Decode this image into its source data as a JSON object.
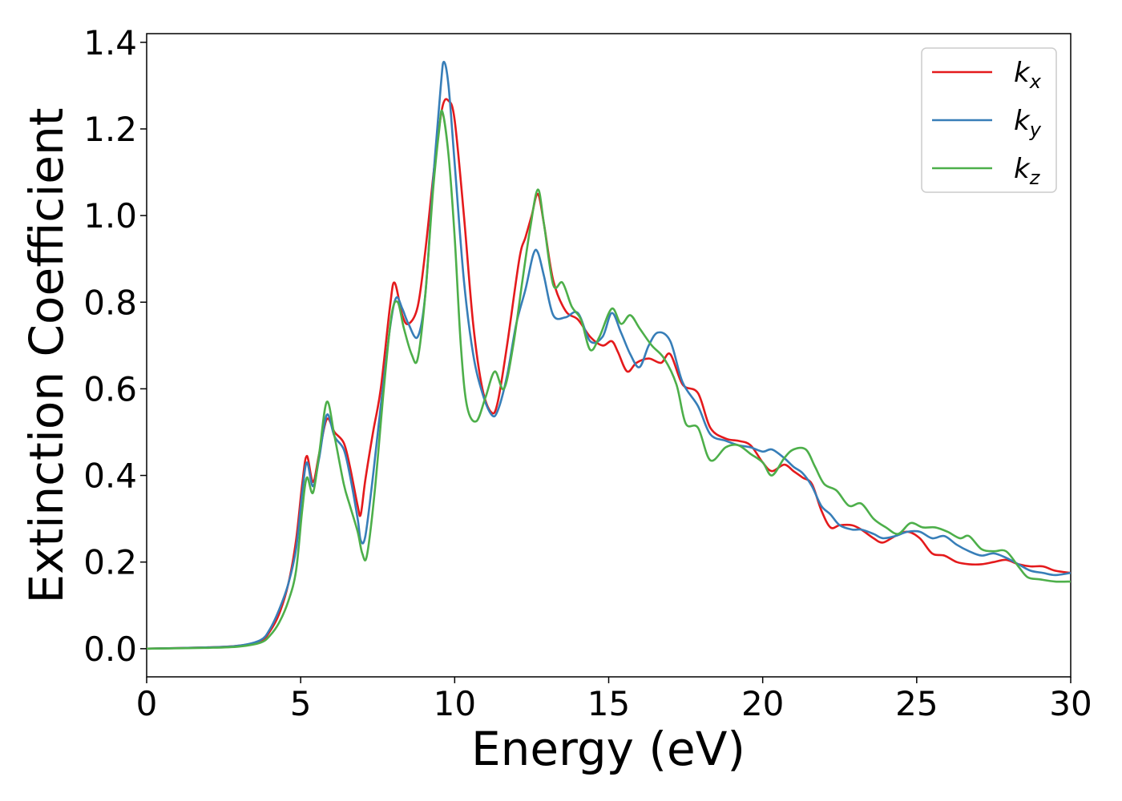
{
  "chart_data": {
    "type": "line",
    "xlabel": "Energy (eV)",
    "ylabel": "Extinction Coefficient",
    "xlim": [
      0,
      30
    ],
    "ylim": [
      -0.065,
      1.42
    ],
    "x_ticks": [
      "0",
      "5",
      "10",
      "15",
      "20",
      "25",
      "30"
    ],
    "y_ticks": [
      "0.0",
      "0.2",
      "0.4",
      "0.6",
      "0.8",
      "1.0",
      "1.2",
      "1.4"
    ],
    "grid": false,
    "legend_position": "top-right",
    "series": [
      {
        "name": "k",
        "subscript": "x",
        "color": "#e41a1c",
        "points": [
          [
            0,
            0
          ],
          [
            2,
            0.003
          ],
          [
            3,
            0.007
          ],
          [
            3.7,
            0.018
          ],
          [
            4.0,
            0.04
          ],
          [
            4.3,
            0.08
          ],
          [
            4.6,
            0.15
          ],
          [
            4.85,
            0.25
          ],
          [
            5.05,
            0.38
          ],
          [
            5.2,
            0.445
          ],
          [
            5.4,
            0.385
          ],
          [
            5.6,
            0.45
          ],
          [
            5.85,
            0.53
          ],
          [
            6.1,
            0.5
          ],
          [
            6.4,
            0.475
          ],
          [
            6.6,
            0.42
          ],
          [
            6.85,
            0.33
          ],
          [
            6.95,
            0.31
          ],
          [
            7.1,
            0.39
          ],
          [
            7.35,
            0.5
          ],
          [
            7.6,
            0.6
          ],
          [
            7.9,
            0.79
          ],
          [
            8.05,
            0.845
          ],
          [
            8.3,
            0.77
          ],
          [
            8.5,
            0.75
          ],
          [
            8.8,
            0.79
          ],
          [
            9.05,
            0.92
          ],
          [
            9.35,
            1.12
          ],
          [
            9.6,
            1.25
          ],
          [
            9.8,
            1.265
          ],
          [
            10.0,
            1.22
          ],
          [
            10.3,
            1.0
          ],
          [
            10.6,
            0.75
          ],
          [
            10.9,
            0.6
          ],
          [
            11.2,
            0.545
          ],
          [
            11.4,
            0.57
          ],
          [
            11.7,
            0.7
          ],
          [
            12.1,
            0.9
          ],
          [
            12.3,
            0.95
          ],
          [
            12.5,
            1.0
          ],
          [
            12.7,
            1.05
          ],
          [
            12.9,
            0.98
          ],
          [
            13.2,
            0.85
          ],
          [
            13.6,
            0.78
          ],
          [
            14.0,
            0.76
          ],
          [
            14.4,
            0.72
          ],
          [
            14.8,
            0.7
          ],
          [
            15.1,
            0.71
          ],
          [
            15.3,
            0.685
          ],
          [
            15.6,
            0.64
          ],
          [
            15.9,
            0.66
          ],
          [
            16.3,
            0.67
          ],
          [
            16.7,
            0.66
          ],
          [
            17.0,
            0.68
          ],
          [
            17.4,
            0.61
          ],
          [
            17.9,
            0.59
          ],
          [
            18.3,
            0.51
          ],
          [
            18.8,
            0.485
          ],
          [
            19.2,
            0.48
          ],
          [
            19.6,
            0.47
          ],
          [
            20.0,
            0.43
          ],
          [
            20.3,
            0.41
          ],
          [
            20.7,
            0.425
          ],
          [
            21.0,
            0.41
          ],
          [
            21.3,
            0.395
          ],
          [
            21.6,
            0.38
          ],
          [
            21.9,
            0.32
          ],
          [
            22.2,
            0.28
          ],
          [
            22.5,
            0.285
          ],
          [
            22.9,
            0.285
          ],
          [
            23.2,
            0.275
          ],
          [
            23.6,
            0.255
          ],
          [
            23.9,
            0.245
          ],
          [
            24.3,
            0.26
          ],
          [
            24.7,
            0.27
          ],
          [
            25.1,
            0.255
          ],
          [
            25.5,
            0.22
          ],
          [
            25.9,
            0.215
          ],
          [
            26.3,
            0.2
          ],
          [
            26.7,
            0.195
          ],
          [
            27.1,
            0.195
          ],
          [
            27.5,
            0.2
          ],
          [
            27.9,
            0.205
          ],
          [
            28.3,
            0.195
          ],
          [
            28.7,
            0.19
          ],
          [
            29.1,
            0.19
          ],
          [
            29.5,
            0.18
          ],
          [
            30.0,
            0.175
          ]
        ]
      },
      {
        "name": "k",
        "subscript": "y",
        "color": "#377eb8",
        "points": [
          [
            0,
            0
          ],
          [
            2,
            0.003
          ],
          [
            3,
            0.007
          ],
          [
            3.7,
            0.02
          ],
          [
            4.0,
            0.045
          ],
          [
            4.3,
            0.09
          ],
          [
            4.6,
            0.15
          ],
          [
            4.85,
            0.23
          ],
          [
            5.05,
            0.36
          ],
          [
            5.2,
            0.43
          ],
          [
            5.4,
            0.375
          ],
          [
            5.6,
            0.44
          ],
          [
            5.85,
            0.54
          ],
          [
            6.1,
            0.49
          ],
          [
            6.4,
            0.46
          ],
          [
            6.6,
            0.4
          ],
          [
            6.85,
            0.3
          ],
          [
            6.95,
            0.25
          ],
          [
            7.1,
            0.26
          ],
          [
            7.35,
            0.4
          ],
          [
            7.6,
            0.56
          ],
          [
            7.9,
            0.74
          ],
          [
            8.1,
            0.81
          ],
          [
            8.3,
            0.785
          ],
          [
            8.5,
            0.75
          ],
          [
            8.8,
            0.72
          ],
          [
            9.05,
            0.82
          ],
          [
            9.3,
            1.08
          ],
          [
            9.55,
            1.3
          ],
          [
            9.65,
            1.355
          ],
          [
            9.8,
            1.3
          ],
          [
            10.0,
            1.12
          ],
          [
            10.3,
            0.85
          ],
          [
            10.6,
            0.68
          ],
          [
            10.9,
            0.59
          ],
          [
            11.2,
            0.54
          ],
          [
            11.4,
            0.55
          ],
          [
            11.7,
            0.63
          ],
          [
            12.0,
            0.75
          ],
          [
            12.3,
            0.83
          ],
          [
            12.55,
            0.91
          ],
          [
            12.7,
            0.915
          ],
          [
            12.9,
            0.86
          ],
          [
            13.2,
            0.77
          ],
          [
            13.6,
            0.765
          ],
          [
            14.0,
            0.775
          ],
          [
            14.4,
            0.71
          ],
          [
            14.8,
            0.72
          ],
          [
            15.1,
            0.775
          ],
          [
            15.4,
            0.73
          ],
          [
            15.7,
            0.68
          ],
          [
            16.0,
            0.65
          ],
          [
            16.3,
            0.7
          ],
          [
            16.6,
            0.73
          ],
          [
            17.0,
            0.71
          ],
          [
            17.4,
            0.615
          ],
          [
            17.9,
            0.56
          ],
          [
            18.3,
            0.495
          ],
          [
            18.8,
            0.48
          ],
          [
            19.2,
            0.47
          ],
          [
            19.6,
            0.465
          ],
          [
            20.0,
            0.455
          ],
          [
            20.3,
            0.46
          ],
          [
            20.7,
            0.44
          ],
          [
            21.0,
            0.42
          ],
          [
            21.3,
            0.405
          ],
          [
            21.6,
            0.375
          ],
          [
            21.9,
            0.33
          ],
          [
            22.2,
            0.31
          ],
          [
            22.5,
            0.285
          ],
          [
            22.9,
            0.275
          ],
          [
            23.2,
            0.275
          ],
          [
            23.6,
            0.265
          ],
          [
            23.9,
            0.255
          ],
          [
            24.3,
            0.26
          ],
          [
            24.7,
            0.27
          ],
          [
            25.1,
            0.27
          ],
          [
            25.5,
            0.255
          ],
          [
            25.9,
            0.26
          ],
          [
            26.3,
            0.24
          ],
          [
            26.7,
            0.225
          ],
          [
            27.1,
            0.215
          ],
          [
            27.5,
            0.22
          ],
          [
            27.9,
            0.21
          ],
          [
            28.3,
            0.195
          ],
          [
            28.7,
            0.18
          ],
          [
            29.1,
            0.175
          ],
          [
            29.5,
            0.17
          ],
          [
            30.0,
            0.175
          ]
        ]
      },
      {
        "name": "k",
        "subscript": "z",
        "color": "#4daf4a",
        "points": [
          [
            0,
            0
          ],
          [
            2,
            0.002
          ],
          [
            3,
            0.005
          ],
          [
            3.7,
            0.014
          ],
          [
            4.0,
            0.03
          ],
          [
            4.3,
            0.06
          ],
          [
            4.6,
            0.11
          ],
          [
            4.85,
            0.18
          ],
          [
            5.05,
            0.32
          ],
          [
            5.2,
            0.395
          ],
          [
            5.4,
            0.36
          ],
          [
            5.6,
            0.45
          ],
          [
            5.85,
            0.57
          ],
          [
            6.1,
            0.49
          ],
          [
            6.4,
            0.38
          ],
          [
            6.6,
            0.33
          ],
          [
            6.85,
            0.27
          ],
          [
            7.0,
            0.22
          ],
          [
            7.15,
            0.215
          ],
          [
            7.4,
            0.36
          ],
          [
            7.7,
            0.6
          ],
          [
            7.95,
            0.77
          ],
          [
            8.15,
            0.8
          ],
          [
            8.35,
            0.74
          ],
          [
            8.6,
            0.68
          ],
          [
            8.8,
            0.67
          ],
          [
            9.05,
            0.82
          ],
          [
            9.3,
            1.06
          ],
          [
            9.5,
            1.2
          ],
          [
            9.6,
            1.24
          ],
          [
            9.8,
            1.14
          ],
          [
            10.0,
            0.95
          ],
          [
            10.2,
            0.7
          ],
          [
            10.4,
            0.56
          ],
          [
            10.7,
            0.525
          ],
          [
            11.0,
            0.58
          ],
          [
            11.3,
            0.64
          ],
          [
            11.6,
            0.6
          ],
          [
            11.9,
            0.7
          ],
          [
            12.2,
            0.85
          ],
          [
            12.45,
            0.97
          ],
          [
            12.7,
            1.06
          ],
          [
            12.9,
            0.98
          ],
          [
            13.2,
            0.84
          ],
          [
            13.5,
            0.845
          ],
          [
            13.8,
            0.79
          ],
          [
            14.1,
            0.76
          ],
          [
            14.4,
            0.69
          ],
          [
            14.7,
            0.72
          ],
          [
            15.1,
            0.785
          ],
          [
            15.4,
            0.75
          ],
          [
            15.7,
            0.77
          ],
          [
            16.0,
            0.74
          ],
          [
            16.4,
            0.7
          ],
          [
            16.8,
            0.67
          ],
          [
            17.2,
            0.61
          ],
          [
            17.5,
            0.52
          ],
          [
            17.9,
            0.51
          ],
          [
            18.3,
            0.435
          ],
          [
            18.8,
            0.465
          ],
          [
            19.2,
            0.47
          ],
          [
            19.6,
            0.45
          ],
          [
            20.0,
            0.43
          ],
          [
            20.3,
            0.4
          ],
          [
            20.7,
            0.44
          ],
          [
            21.0,
            0.46
          ],
          [
            21.4,
            0.46
          ],
          [
            21.7,
            0.42
          ],
          [
            22.0,
            0.38
          ],
          [
            22.4,
            0.365
          ],
          [
            22.8,
            0.33
          ],
          [
            23.2,
            0.335
          ],
          [
            23.6,
            0.3
          ],
          [
            24.0,
            0.28
          ],
          [
            24.4,
            0.265
          ],
          [
            24.8,
            0.29
          ],
          [
            25.2,
            0.28
          ],
          [
            25.6,
            0.28
          ],
          [
            26.0,
            0.27
          ],
          [
            26.4,
            0.255
          ],
          [
            26.7,
            0.26
          ],
          [
            27.1,
            0.23
          ],
          [
            27.5,
            0.225
          ],
          [
            27.9,
            0.225
          ],
          [
            28.3,
            0.19
          ],
          [
            28.6,
            0.165
          ],
          [
            29.0,
            0.16
          ],
          [
            29.5,
            0.155
          ],
          [
            30.0,
            0.155
          ]
        ]
      }
    ]
  }
}
